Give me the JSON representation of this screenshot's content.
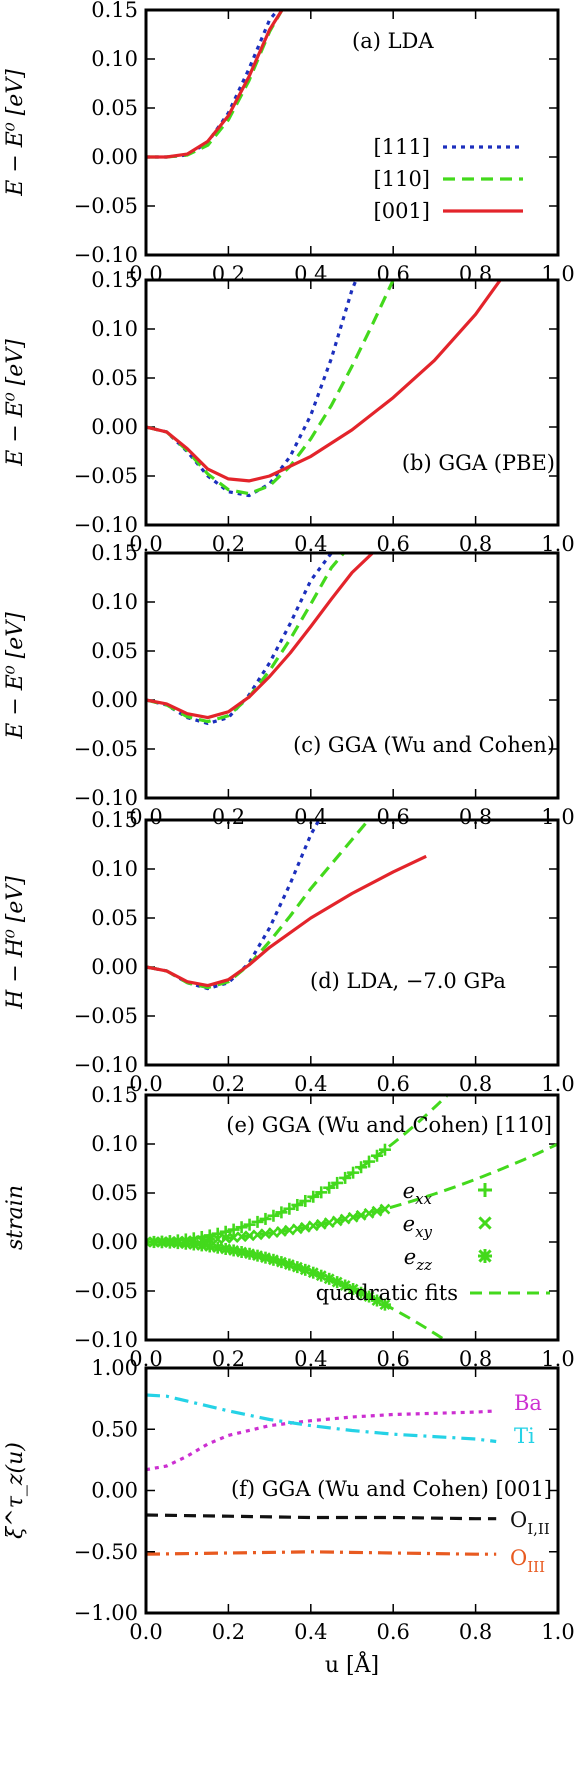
{
  "chart_data": [
    {
      "type": "line",
      "panel": "a",
      "annotation": "(a) LDA",
      "ylabel": "E − E⁰ [eV]",
      "xlim": [
        0.0,
        1.0
      ],
      "ylim": [
        -0.1,
        0.15
      ],
      "xticks": [
        "0.0",
        "0.2",
        "0.4",
        "0.6",
        "0.8",
        "1.0"
      ],
      "yticks": [
        "0.15",
        "0.10",
        "0.05",
        "0.00",
        "−0.05",
        "−0.10"
      ],
      "legend": {
        "position": "bottom-right",
        "entries": [
          "[111]",
          "[110]",
          "[001]"
        ]
      },
      "series": [
        {
          "name": "[111]",
          "style": "dotted",
          "color": "#1c2fbd",
          "x": [
            0.0,
            0.05,
            0.1,
            0.15,
            0.2,
            0.25,
            0.3,
            0.32
          ],
          "y": [
            0.0,
            0.0,
            0.002,
            0.015,
            0.045,
            0.09,
            0.14,
            0.15
          ]
        },
        {
          "name": "[110]",
          "style": "dashed",
          "color": "#43d91c",
          "x": [
            0.0,
            0.05,
            0.1,
            0.15,
            0.2,
            0.25,
            0.3,
            0.33
          ],
          "y": [
            0.0,
            0.0,
            0.002,
            0.012,
            0.038,
            0.078,
            0.128,
            0.15
          ]
        },
        {
          "name": "[001]",
          "style": "solid",
          "color": "#e3242b",
          "x": [
            0.0,
            0.05,
            0.1,
            0.15,
            0.2,
            0.25,
            0.3,
            0.33
          ],
          "y": [
            0.0,
            0.0,
            0.003,
            0.016,
            0.042,
            0.082,
            0.13,
            0.15
          ]
        }
      ]
    },
    {
      "type": "line",
      "panel": "b",
      "annotation": "(b) GGA (PBE)",
      "ylabel": "E − E⁰ [eV]",
      "xlim": [
        0.0,
        1.0
      ],
      "ylim": [
        -0.1,
        0.15
      ],
      "xticks": [
        "0.0",
        "0.2",
        "0.4",
        "0.6",
        "0.8",
        "1.0"
      ],
      "yticks": [
        "0.15",
        "0.10",
        "0.05",
        "0.00",
        "−0.05",
        "−0.10"
      ],
      "series": [
        {
          "name": "[111]",
          "style": "dotted",
          "color": "#1c2fbd",
          "x": [
            0.0,
            0.05,
            0.1,
            0.15,
            0.2,
            0.25,
            0.3,
            0.35,
            0.4,
            0.45,
            0.5,
            0.51
          ],
          "y": [
            0.0,
            -0.005,
            -0.025,
            -0.05,
            -0.066,
            -0.07,
            -0.058,
            -0.03,
            0.012,
            0.07,
            0.14,
            0.15
          ]
        },
        {
          "name": "[110]",
          "style": "dashed",
          "color": "#43d91c",
          "x": [
            0.0,
            0.05,
            0.1,
            0.15,
            0.2,
            0.25,
            0.3,
            0.35,
            0.4,
            0.45,
            0.5,
            0.55,
            0.6
          ],
          "y": [
            0.0,
            -0.005,
            -0.024,
            -0.048,
            -0.064,
            -0.068,
            -0.06,
            -0.04,
            -0.012,
            0.022,
            0.062,
            0.105,
            0.15
          ]
        },
        {
          "name": "[001]",
          "style": "solid",
          "color": "#e3242b",
          "x": [
            0.0,
            0.05,
            0.1,
            0.15,
            0.2,
            0.25,
            0.3,
            0.4,
            0.5,
            0.6,
            0.7,
            0.8,
            0.86
          ],
          "y": [
            0.0,
            -0.005,
            -0.022,
            -0.043,
            -0.053,
            -0.055,
            -0.05,
            -0.03,
            -0.003,
            0.03,
            0.068,
            0.115,
            0.15
          ]
        }
      ]
    },
    {
      "type": "line",
      "panel": "c",
      "annotation": "(c) GGA (Wu and Cohen)",
      "ylabel": "E − E⁰ [eV]",
      "xlim": [
        0.0,
        1.0
      ],
      "ylim": [
        -0.1,
        0.15
      ],
      "xticks": [
        "0.0",
        "0.2",
        "0.4",
        "0.6",
        "0.8",
        "1.0"
      ],
      "yticks": [
        "0.15",
        "0.10",
        "0.05",
        "0.00",
        "−0.05",
        "−0.10"
      ],
      "series": [
        {
          "name": "[111]",
          "style": "dotted",
          "color": "#1c2fbd",
          "x": [
            0.0,
            0.05,
            0.1,
            0.15,
            0.2,
            0.25,
            0.3,
            0.35,
            0.4,
            0.45
          ],
          "y": [
            0.0,
            -0.005,
            -0.018,
            -0.024,
            -0.018,
            0.005,
            0.038,
            0.078,
            0.122,
            0.15
          ]
        },
        {
          "name": "[110]",
          "style": "dashed",
          "color": "#43d91c",
          "x": [
            0.0,
            0.05,
            0.1,
            0.15,
            0.2,
            0.25,
            0.3,
            0.35,
            0.4,
            0.45,
            0.48
          ],
          "y": [
            0.0,
            -0.005,
            -0.017,
            -0.022,
            -0.016,
            0.003,
            0.03,
            0.062,
            0.098,
            0.135,
            0.15
          ]
        },
        {
          "name": "[001]",
          "style": "solid",
          "color": "#e3242b",
          "x": [
            0.0,
            0.05,
            0.1,
            0.15,
            0.2,
            0.25,
            0.3,
            0.35,
            0.4,
            0.45,
            0.5,
            0.55
          ],
          "y": [
            0.0,
            -0.004,
            -0.014,
            -0.018,
            -0.012,
            0.003,
            0.024,
            0.048,
            0.075,
            0.103,
            0.13,
            0.15
          ]
        }
      ]
    },
    {
      "type": "line",
      "panel": "d",
      "annotation": "(d) LDA, −7.0 GPa",
      "ylabel": "H − H⁰ [eV]",
      "xlim": [
        0.0,
        1.0
      ],
      "ylim": [
        -0.1,
        0.15
      ],
      "xticks": [
        "0.0",
        "0.2",
        "0.4",
        "0.6",
        "0.8",
        "1.0"
      ],
      "yticks": [
        "0.15",
        "0.10",
        "0.05",
        "0.00",
        "−0.05",
        "−0.10"
      ],
      "series": [
        {
          "name": "[111]",
          "style": "dotted",
          "color": "#1c2fbd",
          "x": [
            0.0,
            0.05,
            0.1,
            0.15,
            0.2,
            0.25,
            0.3,
            0.35,
            0.4,
            0.42
          ],
          "y": [
            0.0,
            -0.004,
            -0.016,
            -0.022,
            -0.016,
            0.004,
            0.04,
            0.085,
            0.135,
            0.15
          ]
        },
        {
          "name": "[110]",
          "style": "dashed",
          "color": "#43d91c",
          "x": [
            0.0,
            0.05,
            0.1,
            0.15,
            0.2,
            0.25,
            0.3,
            0.35,
            0.4,
            0.45,
            0.5,
            0.54
          ],
          "y": [
            0.0,
            -0.004,
            -0.016,
            -0.021,
            -0.015,
            0.002,
            0.026,
            0.052,
            0.08,
            0.105,
            0.13,
            0.15
          ]
        },
        {
          "name": "[001]",
          "style": "solid",
          "color": "#e3242b",
          "x": [
            0.0,
            0.05,
            0.1,
            0.15,
            0.2,
            0.25,
            0.3,
            0.4,
            0.5,
            0.6,
            0.68
          ],
          "y": [
            0.0,
            -0.004,
            -0.015,
            -0.019,
            -0.013,
            0.002,
            0.02,
            0.05,
            0.075,
            0.097,
            0.113
          ]
        }
      ]
    },
    {
      "type": "scatter",
      "panel": "e",
      "annotation": "(e) GGA (Wu and Cohen) [110]",
      "ylabel": "strain",
      "xlim": [
        0.0,
        1.0
      ],
      "ylim": [
        -0.1,
        0.15
      ],
      "xticks": [
        "0.0",
        "0.2",
        "0.4",
        "0.6",
        "0.8",
        "1.0"
      ],
      "yticks": [
        "0.15",
        "0.10",
        "0.05",
        "0.00",
        "−0.05",
        "−0.10"
      ],
      "legend": {
        "position": "right",
        "entries": [
          "e_xx",
          "e_xy",
          "e_zz",
          "quadratic fits"
        ]
      },
      "series": [
        {
          "name": "e_xx",
          "marker": "plus",
          "color": "#43d91c",
          "coef": 0.28,
          "x_max": 0.58
        },
        {
          "name": "e_xy",
          "marker": "cross",
          "color": "#43d91c",
          "coef": 0.1,
          "x_max": 0.58
        },
        {
          "name": "e_zz",
          "marker": "star",
          "color": "#43d91c",
          "coef": -0.19,
          "x_max": 0.58
        },
        {
          "name": "quadratic fits",
          "style": "dashed",
          "color": "#43d91c",
          "fits": [
            {
              "coef": 0.28,
              "x_max": 0.73
            },
            {
              "coef": 0.1,
              "x_max": 1.0
            },
            {
              "coef": -0.19,
              "x_max": 0.73
            }
          ]
        }
      ]
    },
    {
      "type": "line",
      "panel": "f",
      "annotation": "(f) GGA (Wu and Cohen) [001]",
      "ylabel": "ξ^τ_z(u)",
      "xlabel": "u [Å]",
      "xlim": [
        0.0,
        1.0
      ],
      "ylim": [
        -1.0,
        1.0
      ],
      "xticks": [
        "0.0",
        "0.2",
        "0.4",
        "0.6",
        "0.8",
        "1.0"
      ],
      "yticks": [
        "1.00",
        "0.50",
        "0.00",
        "−0.50",
        "−1.00"
      ],
      "series": [
        {
          "name": "Ba",
          "style": "dotted",
          "color": "#cc2fd1",
          "x": [
            0.0,
            0.05,
            0.1,
            0.15,
            0.2,
            0.3,
            0.4,
            0.5,
            0.6,
            0.7,
            0.8,
            0.85
          ],
          "y": [
            0.17,
            0.2,
            0.28,
            0.38,
            0.45,
            0.53,
            0.57,
            0.6,
            0.62,
            0.63,
            0.64,
            0.65
          ]
        },
        {
          "name": "Ti",
          "style": "dashdot",
          "color": "#25d2e6",
          "x": [
            0.0,
            0.05,
            0.1,
            0.2,
            0.3,
            0.4,
            0.5,
            0.6,
            0.7,
            0.8,
            0.85
          ],
          "y": [
            0.78,
            0.77,
            0.73,
            0.65,
            0.58,
            0.53,
            0.49,
            0.46,
            0.44,
            0.42,
            0.4
          ]
        },
        {
          "name": "O_I,II",
          "style": "dashed",
          "color": "#111111",
          "x": [
            0.0,
            0.2,
            0.4,
            0.6,
            0.8,
            0.85
          ],
          "y": [
            -0.2,
            -0.21,
            -0.22,
            -0.22,
            -0.23,
            -0.23
          ]
        },
        {
          "name": "O_III",
          "style": "dashdot",
          "color": "#e85a20",
          "x": [
            0.0,
            0.2,
            0.4,
            0.6,
            0.8,
            0.85
          ],
          "y": [
            -0.52,
            -0.51,
            -0.5,
            -0.51,
            -0.52,
            -0.52
          ]
        }
      ],
      "series_labels": [
        {
          "text": "Ba",
          "color": "#cc2fd1"
        },
        {
          "text": "Ti",
          "color": "#25d2e6"
        },
        {
          "text": "O",
          "sub": "I,II",
          "color": "#111111"
        },
        {
          "text": "O",
          "sub": "III",
          "color": "#e85a20"
        }
      ]
    }
  ]
}
